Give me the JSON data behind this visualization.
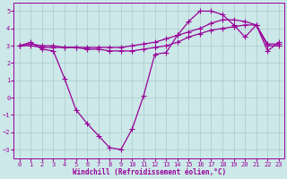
{
  "xlabel": "Windchill (Refroidissement éolien,°C)",
  "bg_color": "#cce8e8",
  "grid_color": "#aacccc",
  "line_color": "#990099",
  "xlim": [
    -0.5,
    23.5
  ],
  "ylim": [
    -3.5,
    5.5
  ],
  "yticks": [
    -3,
    -2,
    -1,
    0,
    1,
    2,
    3,
    4,
    5
  ],
  "xticks": [
    0,
    1,
    2,
    3,
    4,
    5,
    6,
    7,
    8,
    9,
    10,
    11,
    12,
    13,
    14,
    15,
    16,
    17,
    18,
    19,
    20,
    21,
    22,
    23
  ],
  "series1_x": [
    0,
    1,
    2,
    3,
    4,
    5,
    6,
    7,
    8,
    9,
    10,
    11,
    12,
    13,
    14,
    15,
    16,
    17,
    18,
    19,
    20,
    21,
    22,
    23
  ],
  "series1_y": [
    3.0,
    3.2,
    2.8,
    2.7,
    1.1,
    -0.7,
    -1.5,
    -2.2,
    -2.9,
    -3.0,
    -1.8,
    0.1,
    2.5,
    2.6,
    3.6,
    4.4,
    5.0,
    5.0,
    4.8,
    4.2,
    3.5,
    4.2,
    2.7,
    3.2
  ],
  "series2_x": [
    0,
    1,
    2,
    3,
    4,
    5,
    6,
    7,
    8,
    9,
    10,
    11,
    12,
    13,
    14,
    15,
    16,
    17,
    18,
    19,
    20,
    21,
    22,
    23
  ],
  "series2_y": [
    3.0,
    3.0,
    2.9,
    2.9,
    2.9,
    2.9,
    2.8,
    2.8,
    2.7,
    2.7,
    2.7,
    2.8,
    2.9,
    3.0,
    3.2,
    3.5,
    3.7,
    3.9,
    4.0,
    4.1,
    4.2,
    4.2,
    3.0,
    3.0
  ],
  "series3_x": [
    0,
    1,
    2,
    3,
    4,
    5,
    6,
    7,
    8,
    9,
    10,
    11,
    12,
    13,
    14,
    15,
    16,
    17,
    18,
    19,
    20,
    21,
    22,
    23
  ],
  "series3_y": [
    3.0,
    3.1,
    3.0,
    3.0,
    2.9,
    2.9,
    2.9,
    2.9,
    2.9,
    2.9,
    3.0,
    3.1,
    3.2,
    3.4,
    3.6,
    3.8,
    4.0,
    4.3,
    4.5,
    4.5,
    4.4,
    4.2,
    3.1,
    3.1
  ]
}
